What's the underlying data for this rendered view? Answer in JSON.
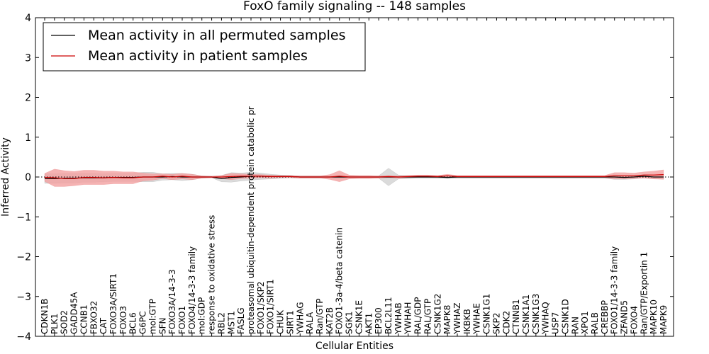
{
  "chart_data": {
    "type": "line",
    "title": "FoxO family signaling -- 148 samples",
    "xlabel": "Cellular Entities",
    "ylabel": "Inferred Activity",
    "ylim": [
      -4,
      4
    ],
    "yticks": [
      -4,
      -3,
      -2,
      -1,
      0,
      1,
      2,
      3,
      4
    ],
    "ytick_labels": [
      "−4",
      "−3",
      "−2",
      "−1",
      "0",
      "1",
      "2",
      "3",
      "4"
    ],
    "grid": false,
    "legend_position": "top-left",
    "reference_line": {
      "y": 0,
      "style": "dotted",
      "color": "#000000"
    },
    "categories": [
      "CDKN1B",
      "PLK1",
      "SOD2",
      "GADD45A",
      "CCNB1",
      "FBXO32",
      "CAT",
      "FOXO3A/SIRT1",
      "FOXO3",
      "BCL6",
      "G6PC",
      "mol:GTP",
      "SFN",
      "FOXO3A/14-3-3",
      "FOXO1",
      "FOXO4/14-3-3 family",
      "mol:GDP",
      "response to oxidative stress",
      "RBL2",
      "MST1",
      "FASLG",
      "proteasomal ubiquitin-dependent protein catabolic pr",
      "FOXO1/SKP2",
      "FOXO1/SIRT1",
      "CHUK",
      "SIRT1",
      "YWHAG",
      "RALA",
      "Ran/GTP",
      "KAT2B",
      "FOXO1-3a-4/beta catenin",
      "SGK1",
      "CSNK1E",
      "AKT1",
      "EP300",
      "BCL2L11",
      "YWHAB",
      "YWHAH",
      "RAL/GDP",
      "RAL/GTP",
      "CSNK1G2",
      "MAPK8",
      "YWHAZ",
      "IKBKB",
      "YWHAE",
      "CSNK1G1",
      "SKP2",
      "CDK2",
      "CTNNB1",
      "CSNK1A1",
      "CSNK1G3",
      "YWHAQ",
      "USP7",
      "CSNK1D",
      "RAN",
      "XPO1",
      "RALB",
      "CREBBP",
      "FOXO1/14-3-3 family",
      "ZFAND5",
      "FOXO4",
      "Ran/GTP/Exportin 1",
      "MAPK10",
      "MAPK9"
    ],
    "series": [
      {
        "name": "Mean activity in all permuted samples",
        "color": "#000000",
        "band_color": "#cfcfcf",
        "values": [
          -0.04,
          -0.04,
          -0.03,
          -0.03,
          -0.02,
          -0.02,
          -0.02,
          -0.01,
          -0.01,
          -0.01,
          0.0,
          0.0,
          0.0,
          0.01,
          0.0,
          0.0,
          0.0,
          0.0,
          -0.04,
          -0.01,
          0.0,
          0.02,
          0.02,
          0.01,
          0.01,
          0.01,
          0.0,
          0.0,
          0.0,
          0.0,
          0.0,
          0.0,
          0.0,
          0.0,
          0.0,
          0.0,
          0.0,
          0.0,
          0.0,
          0.0,
          0.0,
          -0.01,
          0.0,
          0.0,
          0.0,
          0.0,
          0.0,
          0.0,
          0.0,
          0.0,
          0.0,
          0.0,
          0.0,
          0.0,
          0.0,
          0.0,
          0.0,
          0.0,
          0.0,
          -0.01,
          0.0,
          0.02,
          0.0,
          0.0
        ],
        "band_half_width": [
          0.12,
          0.12,
          0.12,
          0.12,
          0.11,
          0.11,
          0.1,
          0.1,
          0.1,
          0.1,
          0.12,
          0.12,
          0.08,
          0.08,
          0.09,
          0.07,
          0.03,
          0.02,
          0.08,
          0.12,
          0.1,
          0.1,
          0.08,
          0.06,
          0.04,
          0.03,
          0.03,
          0.03,
          0.03,
          0.03,
          0.03,
          0.03,
          0.03,
          0.03,
          0.03,
          0.22,
          0.05,
          0.04,
          0.03,
          0.03,
          0.03,
          0.03,
          0.03,
          0.03,
          0.03,
          0.03,
          0.03,
          0.03,
          0.03,
          0.03,
          0.03,
          0.03,
          0.03,
          0.03,
          0.03,
          0.03,
          0.03,
          0.03,
          0.06,
          0.05,
          0.05,
          0.04,
          0.05,
          0.05
        ]
      },
      {
        "name": "Mean activity in patient samples",
        "color": "#cc0000",
        "band_color": "#f2a0a0",
        "values": [
          -0.01,
          -0.02,
          -0.04,
          -0.04,
          -0.01,
          -0.01,
          -0.02,
          -0.01,
          -0.02,
          -0.02,
          0.0,
          0.0,
          0.02,
          0.0,
          0.02,
          0.0,
          0.0,
          0.0,
          0.0,
          0.01,
          0.02,
          0.02,
          0.02,
          0.01,
          0.01,
          0.01,
          0.0,
          0.0,
          0.0,
          0.0,
          0.02,
          0.0,
          0.0,
          0.0,
          0.0,
          0.01,
          0.0,
          0.01,
          0.02,
          0.02,
          0.01,
          0.03,
          0.01,
          0.01,
          0.01,
          0.01,
          0.01,
          0.01,
          0.01,
          0.01,
          0.01,
          0.01,
          0.01,
          0.01,
          0.01,
          0.01,
          0.01,
          0.01,
          0.03,
          0.03,
          0.03,
          0.05,
          0.05,
          0.06
        ],
        "band_half_width": [
          0.1,
          0.22,
          0.2,
          0.18,
          0.18,
          0.18,
          0.17,
          0.16,
          0.15,
          0.15,
          0.1,
          0.08,
          0.06,
          0.07,
          0.07,
          0.07,
          0.03,
          0.02,
          0.04,
          0.08,
          0.06,
          0.05,
          0.04,
          0.04,
          0.03,
          0.03,
          0.03,
          0.03,
          0.03,
          0.06,
          0.14,
          0.05,
          0.04,
          0.04,
          0.03,
          0.03,
          0.03,
          0.03,
          0.03,
          0.03,
          0.03,
          0.04,
          0.03,
          0.03,
          0.03,
          0.03,
          0.03,
          0.03,
          0.03,
          0.03,
          0.03,
          0.03,
          0.03,
          0.03,
          0.03,
          0.03,
          0.03,
          0.03,
          0.08,
          0.08,
          0.07,
          0.08,
          0.1,
          0.12
        ]
      }
    ]
  }
}
